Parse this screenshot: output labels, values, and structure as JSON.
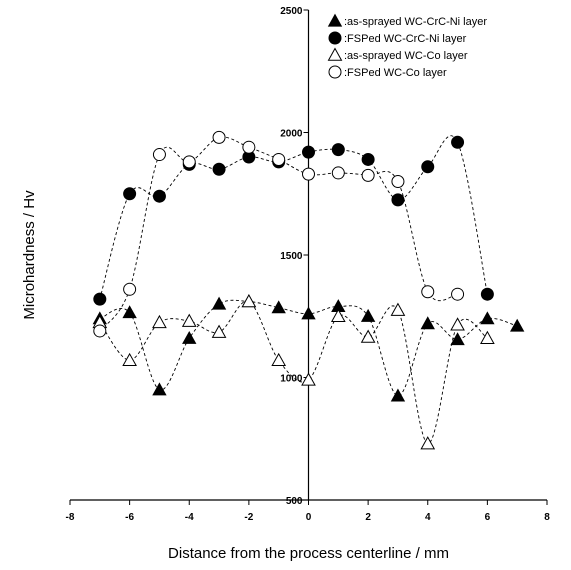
{
  "chart_data": {
    "type": "scatter",
    "title": "",
    "xlabel": "Distance from the process centerline / mm",
    "ylabel": "Microhardness / Hv",
    "xlim": [
      -8,
      8
    ],
    "ylim": [
      500,
      2500
    ],
    "xticks": [
      -8,
      -6,
      -4,
      -2,
      0,
      2,
      4,
      6,
      8
    ],
    "xtick_labels": [
      "-8",
      "-6",
      "-4",
      "-2",
      "0",
      "2",
      "4",
      "6",
      "8"
    ],
    "yticks": [
      500,
      1000,
      1500,
      2000,
      2500
    ],
    "ytick_labels": [
      "500",
      "1000",
      "1500",
      "2000",
      "2500"
    ],
    "grid": false,
    "legend_position": "top-right",
    "series": [
      {
        "name": "as-sprayed WC-CrC-Ni layer",
        "marker": "triangle-filled",
        "x": [
          -7,
          -6,
          -5,
          -4,
          -3,
          -2,
          -1,
          0,
          1,
          2,
          3,
          4,
          5,
          6,
          7
        ],
        "y": [
          1240,
          1265,
          950,
          1160,
          1300,
          1310,
          1285,
          1260,
          1290,
          1250,
          925,
          1220,
          1155,
          1240,
          1210
        ]
      },
      {
        "name": "FSPed WC-CrC-Ni layer",
        "marker": "circle-filled",
        "x": [
          -7,
          -6,
          -5,
          -4,
          -3,
          -2,
          -1,
          0,
          1,
          2,
          3,
          4,
          5,
          6
        ],
        "y": [
          1320,
          1750,
          1740,
          1870,
          1850,
          1900,
          1880,
          1920,
          1930,
          1890,
          1725,
          1860,
          1960,
          1340
        ]
      },
      {
        "name": "as-sprayed WC-Co layer",
        "marker": "triangle-open",
        "x": [
          -7,
          -6,
          -5,
          -4,
          -3,
          -2,
          -1,
          0,
          1,
          2,
          3,
          4,
          5,
          6
        ],
        "y": [
          1225,
          1070,
          1225,
          1230,
          1185,
          1310,
          1070,
          990,
          1250,
          1165,
          1275,
          730,
          1215,
          1160
        ]
      },
      {
        "name": "FSPed WC-Co layer",
        "marker": "circle-open",
        "x": [
          -7,
          -6,
          -5,
          -4,
          -3,
          -2,
          -1,
          0,
          1,
          2,
          3,
          4,
          5
        ],
        "y": [
          1190,
          1360,
          1910,
          1880,
          1980,
          1940,
          1890,
          1830,
          1835,
          1825,
          1800,
          1350,
          1340
        ]
      }
    ],
    "legend_labels": [
      "as-sprayed WC-CrC-Ni layer",
      "FSPed WC-CrC-Ni layer",
      "as-sprayed WC-Co layer",
      "FSPed WC-Co layer"
    ]
  }
}
